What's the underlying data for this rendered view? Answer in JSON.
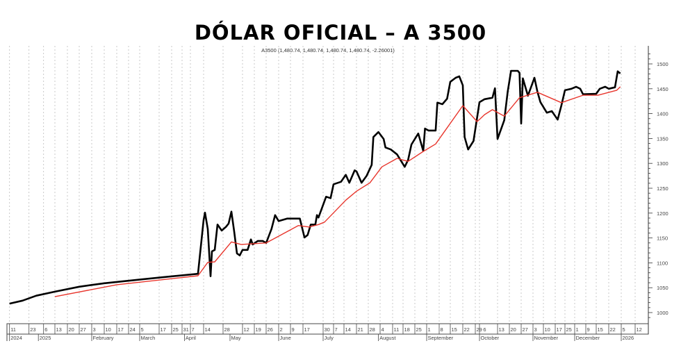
{
  "chart_data": {
    "type": "line",
    "title": "DÓLAR OFICIAL – A 3500",
    "legend_text": "A3500 (1,480.74, 1,480.74, 1,480.74, 1,480.74, -2.26001)",
    "ylim": [
      1000,
      1520
    ],
    "y_ticks": [
      1000,
      1050,
      1100,
      1150,
      1200,
      1250,
      1300,
      1350,
      1400,
      1450,
      1500
    ],
    "y_axis_side": "right",
    "grid": "vertical dashed lines at date ticks",
    "x_ticks": [
      {
        "date": "2024-12-11",
        "label": "11"
      },
      {
        "date": "2024-12-23",
        "label": "23"
      },
      {
        "date": "2025-01-06",
        "label": "6"
      },
      {
        "date": "2025-01-13",
        "label": "13"
      },
      {
        "date": "2025-01-20",
        "label": "20"
      },
      {
        "date": "2025-01-27",
        "label": "27"
      },
      {
        "date": "2025-02-03",
        "label": "3"
      },
      {
        "date": "2025-02-10",
        "label": "10"
      },
      {
        "date": "2025-02-17",
        "label": "17"
      },
      {
        "date": "2025-02-24",
        "label": "24"
      },
      {
        "date": "2025-03-05",
        "label": "5"
      },
      {
        "date": "2025-03-17",
        "label": "17"
      },
      {
        "date": "2025-03-25",
        "label": "25"
      },
      {
        "date": "2025-03-31",
        "label": "31"
      },
      {
        "date": "2025-04-07",
        "label": "7"
      },
      {
        "date": "2025-04-14",
        "label": "14"
      },
      {
        "date": "2025-04-28",
        "label": "28"
      },
      {
        "date": "2025-05-12",
        "label": "12"
      },
      {
        "date": "2025-05-19",
        "label": "19"
      },
      {
        "date": "2025-05-26",
        "label": "26"
      },
      {
        "date": "2025-06-02",
        "label": "2"
      },
      {
        "date": "2025-06-09",
        "label": "9"
      },
      {
        "date": "2025-06-17",
        "label": "17"
      },
      {
        "date": "2025-06-30",
        "label": "30"
      },
      {
        "date": "2025-07-07",
        "label": "7"
      },
      {
        "date": "2025-07-14",
        "label": "14"
      },
      {
        "date": "2025-07-21",
        "label": "21"
      },
      {
        "date": "2025-07-28",
        "label": "28"
      },
      {
        "date": "2025-08-04",
        "label": "4"
      },
      {
        "date": "2025-08-11",
        "label": "11"
      },
      {
        "date": "2025-08-18",
        "label": "18"
      },
      {
        "date": "2025-08-25",
        "label": "25"
      },
      {
        "date": "2025-09-01",
        "label": "1"
      },
      {
        "date": "2025-09-08",
        "label": "8"
      },
      {
        "date": "2025-09-15",
        "label": "15"
      },
      {
        "date": "2025-09-22",
        "label": "22"
      },
      {
        "date": "2025-09-29",
        "label": "29"
      },
      {
        "date": "2025-10-06",
        "label": "6"
      },
      {
        "date": "2025-10-13",
        "label": "13"
      },
      {
        "date": "2025-10-20",
        "label": "20"
      },
      {
        "date": "2025-10-27",
        "label": "27"
      },
      {
        "date": "2025-11-03",
        "label": "3"
      },
      {
        "date": "2025-11-10",
        "label": "10"
      },
      {
        "date": "2025-11-17",
        "label": "17"
      },
      {
        "date": "2025-11-25",
        "label": "25"
      },
      {
        "date": "2025-12-01",
        "label": "1"
      },
      {
        "date": "2025-12-09",
        "label": "9"
      },
      {
        "date": "2025-12-15",
        "label": "15"
      },
      {
        "date": "2025-12-22",
        "label": "22"
      },
      {
        "date": "2026-01-05",
        "label": "5"
      },
      {
        "date": "2026-01-12",
        "label": "12"
      }
    ],
    "x_period_labels": [
      {
        "date": "2024-12-11",
        "label": "2024"
      },
      {
        "date": "2025-01-01",
        "label": "2025"
      },
      {
        "date": "2025-02-03",
        "label": "February"
      },
      {
        "date": "2025-03-05",
        "label": "March"
      },
      {
        "date": "2025-04-02",
        "label": "April"
      },
      {
        "date": "2025-05-03",
        "label": "May"
      },
      {
        "date": "2025-06-02",
        "label": "June"
      },
      {
        "date": "2025-06-30",
        "label": "July"
      },
      {
        "date": "2025-08-03",
        "label": "August"
      },
      {
        "date": "2025-09-01",
        "label": "September"
      },
      {
        "date": "2025-10-06",
        "label": "October"
      },
      {
        "date": "2025-11-03",
        "label": "November"
      },
      {
        "date": "2025-12-01",
        "label": "December"
      },
      {
        "date": "2026-01-05",
        "label": "2026"
      }
    ],
    "series": [
      {
        "color": "#000000",
        "points": [
          [
            "2024-12-11",
            1018
          ],
          [
            "2024-12-19",
            1024
          ],
          [
            "2024-12-30",
            1034
          ],
          [
            "2025-01-13",
            1042
          ],
          [
            "2025-01-27",
            1052
          ],
          [
            "2025-02-10",
            1059
          ],
          [
            "2025-03-04",
            1066
          ],
          [
            "2025-03-19",
            1071
          ],
          [
            "2025-04-11",
            1078
          ],
          [
            "2025-04-14",
            1186
          ],
          [
            "2025-04-15",
            1201
          ],
          [
            "2025-04-17",
            1168
          ],
          [
            "2025-04-19",
            1073
          ],
          [
            "2025-04-20",
            1123
          ],
          [
            "2025-04-22",
            1126
          ],
          [
            "2025-04-24",
            1177
          ],
          [
            "2025-04-27",
            1165
          ],
          [
            "2025-04-30",
            1172
          ],
          [
            "2025-05-02",
            1179
          ],
          [
            "2025-05-04",
            1203
          ],
          [
            "2025-05-06",
            1163
          ],
          [
            "2025-05-08",
            1119
          ],
          [
            "2025-05-10",
            1115
          ],
          [
            "2025-05-12",
            1126
          ],
          [
            "2025-05-15",
            1126
          ],
          [
            "2025-05-17",
            1147
          ],
          [
            "2025-05-18",
            1137
          ],
          [
            "2025-05-21",
            1144
          ],
          [
            "2025-05-24",
            1144
          ],
          [
            "2025-05-26",
            1140
          ],
          [
            "2025-05-29",
            1168
          ],
          [
            "2025-05-31",
            1196
          ],
          [
            "2025-06-02",
            1184
          ],
          [
            "2025-06-07",
            1189
          ],
          [
            "2025-06-15",
            1189
          ],
          [
            "2025-06-18",
            1151
          ],
          [
            "2025-06-20",
            1156
          ],
          [
            "2025-06-22",
            1177
          ],
          [
            "2025-06-25",
            1177
          ],
          [
            "2025-06-26",
            1196
          ],
          [
            "2025-06-27",
            1191
          ],
          [
            "2025-07-02",
            1233
          ],
          [
            "2025-07-05",
            1230
          ],
          [
            "2025-07-07",
            1258
          ],
          [
            "2025-07-12",
            1263
          ],
          [
            "2025-07-15",
            1277
          ],
          [
            "2025-07-17",
            1261
          ],
          [
            "2025-07-20",
            1286
          ],
          [
            "2025-07-21",
            1284
          ],
          [
            "2025-07-24",
            1261
          ],
          [
            "2025-07-27",
            1275
          ],
          [
            "2025-07-30",
            1297
          ],
          [
            "2025-07-31",
            1353
          ],
          [
            "2025-08-03",
            1363
          ],
          [
            "2025-08-06",
            1349
          ],
          [
            "2025-08-07",
            1332
          ],
          [
            "2025-08-10",
            1328
          ],
          [
            "2025-08-14",
            1318
          ],
          [
            "2025-08-19",
            1293
          ],
          [
            "2025-08-21",
            1307
          ],
          [
            "2025-08-23",
            1338
          ],
          [
            "2025-08-27",
            1360
          ],
          [
            "2025-08-30",
            1325
          ],
          [
            "2025-08-31",
            1370
          ],
          [
            "2025-09-02",
            1366
          ],
          [
            "2025-09-06",
            1366
          ],
          [
            "2025-09-07",
            1422
          ],
          [
            "2025-09-10",
            1419
          ],
          [
            "2025-09-13",
            1430
          ],
          [
            "2025-09-15",
            1464
          ],
          [
            "2025-09-18",
            1472
          ],
          [
            "2025-09-20",
            1475
          ],
          [
            "2025-09-22",
            1457
          ],
          [
            "2025-09-23",
            1353
          ],
          [
            "2025-09-25",
            1328
          ],
          [
            "2025-09-28",
            1345
          ],
          [
            "2025-10-06",
            1423
          ],
          [
            "2025-10-08",
            1429
          ],
          [
            "2025-10-11",
            1432
          ],
          [
            "2025-10-12",
            1451
          ],
          [
            "2025-10-13",
            1349
          ],
          [
            "2025-10-17",
            1387
          ],
          [
            "2025-10-19",
            1444
          ],
          [
            "2025-10-21",
            1486
          ],
          [
            "2025-10-25",
            1486
          ],
          [
            "2025-10-26",
            1482
          ],
          [
            "2025-10-27",
            1380
          ],
          [
            "2025-10-28",
            1471
          ],
          [
            "2025-10-31",
            1436
          ],
          [
            "2025-11-04",
            1472
          ],
          [
            "2025-11-06",
            1444
          ],
          [
            "2025-11-08",
            1423
          ],
          [
            "2025-11-12",
            1402
          ],
          [
            "2025-11-15",
            1405
          ],
          [
            "2025-11-19",
            1388
          ],
          [
            "2025-11-22",
            1416
          ],
          [
            "2025-11-25",
            1447
          ],
          [
            "2025-11-29",
            1450
          ],
          [
            "2025-12-02",
            1454
          ],
          [
            "2025-12-05",
            1450
          ],
          [
            "2025-12-07",
            1439
          ],
          [
            "2025-12-15",
            1440
          ],
          [
            "2025-12-17",
            1450
          ],
          [
            "2025-12-20",
            1454
          ],
          [
            "2025-12-22",
            1450
          ],
          [
            "2025-12-29",
            1453
          ],
          [
            "2026-01-01",
            1485
          ],
          [
            "2026-01-04",
            1480.74
          ]
        ]
      },
      {
        "color": "#e8352c",
        "points": [
          [
            "2025-01-13",
            1032
          ],
          [
            "2025-02-17",
            1056
          ],
          [
            "2025-04-11",
            1074
          ],
          [
            "2025-04-17",
            1101
          ],
          [
            "2025-04-22",
            1102
          ],
          [
            "2025-05-04",
            1142
          ],
          [
            "2025-05-11",
            1137
          ],
          [
            "2025-05-26",
            1140
          ],
          [
            "2025-06-14",
            1175
          ],
          [
            "2025-06-21",
            1172
          ],
          [
            "2025-06-27",
            1177
          ],
          [
            "2025-07-01",
            1182
          ],
          [
            "2025-07-15",
            1226
          ],
          [
            "2025-07-21",
            1244
          ],
          [
            "2025-07-29",
            1261
          ],
          [
            "2025-08-05",
            1293
          ],
          [
            "2025-08-14",
            1310
          ],
          [
            "2025-08-21",
            1304
          ],
          [
            "2025-08-30",
            1324
          ],
          [
            "2025-09-06",
            1339
          ],
          [
            "2025-09-22",
            1416
          ],
          [
            "2025-10-02",
            1384
          ],
          [
            "2025-10-08",
            1398
          ],
          [
            "2025-10-11",
            1408
          ],
          [
            "2025-10-17",
            1395
          ],
          [
            "2025-10-26",
            1432
          ],
          [
            "2025-11-06",
            1443
          ],
          [
            "2025-11-22",
            1422
          ],
          [
            "2025-12-07",
            1437
          ],
          [
            "2025-12-16",
            1437
          ],
          [
            "2025-12-31",
            1447
          ],
          [
            "2026-01-04",
            1454
          ]
        ]
      }
    ]
  }
}
